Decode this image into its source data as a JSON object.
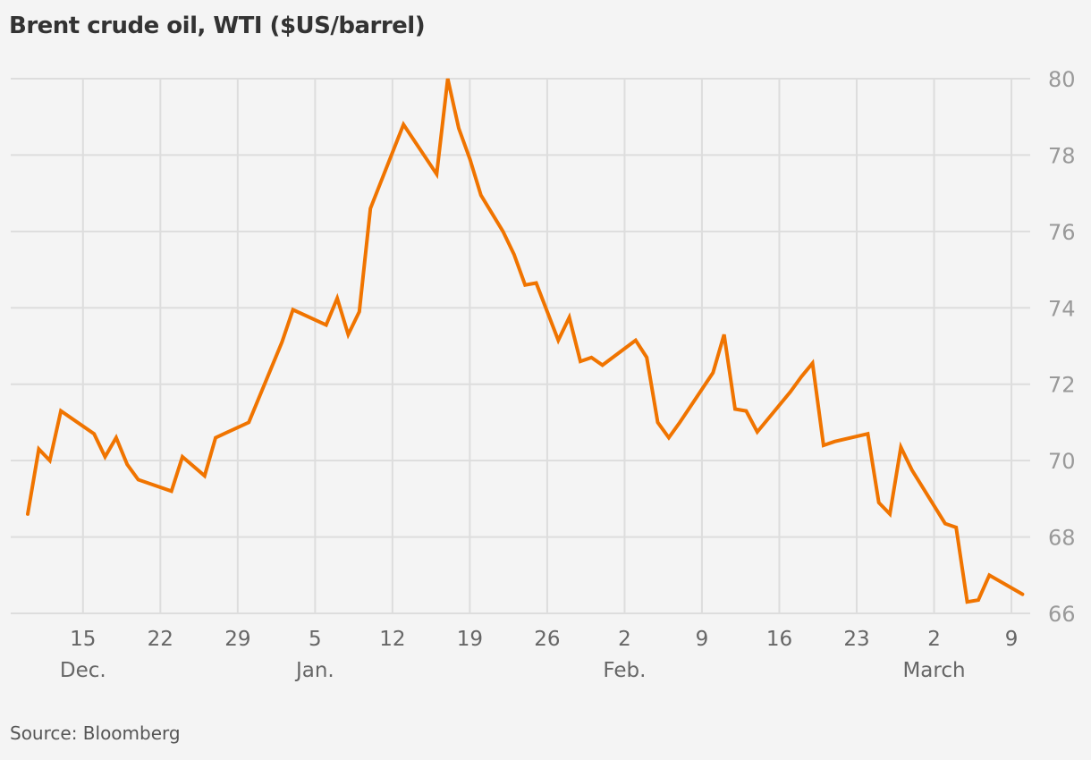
{
  "chart_data": {
    "type": "line",
    "title": "Brent crude oil, WTI ($US/barrel)",
    "source": "Source: Bloomberg",
    "xlabel": "",
    "ylabel": "",
    "ylim": [
      66,
      80
    ],
    "y_ticks": [
      66,
      68,
      70,
      72,
      74,
      76,
      78,
      80
    ],
    "grid": true,
    "x_ticks": [
      {
        "day": 5,
        "label": "15",
        "month": "Dec."
      },
      {
        "day": 12,
        "label": "22",
        "month": ""
      },
      {
        "day": 19,
        "label": "29",
        "month": ""
      },
      {
        "day": 26,
        "label": "5",
        "month": "Jan."
      },
      {
        "day": 33,
        "label": "12",
        "month": ""
      },
      {
        "day": 40,
        "label": "19",
        "month": ""
      },
      {
        "day": 47,
        "label": "26",
        "month": ""
      },
      {
        "day": 54,
        "label": "2",
        "month": "Feb."
      },
      {
        "day": 61,
        "label": "9",
        "month": ""
      },
      {
        "day": 68,
        "label": "16",
        "month": ""
      },
      {
        "day": 75,
        "label": "23",
        "month": ""
      },
      {
        "day": 82,
        "label": "2",
        "month": "March"
      },
      {
        "day": 89,
        "label": "9",
        "month": ""
      }
    ],
    "series": [
      {
        "name": "WTI",
        "color": "#f07400",
        "x": [
          0,
          1,
          2,
          3,
          6,
          7,
          8,
          9,
          10,
          13,
          14,
          16,
          17,
          20,
          23,
          24,
          27,
          28,
          29,
          30,
          31,
          34,
          37,
          38,
          39,
          40,
          41,
          43,
          44,
          45,
          46,
          48,
          49,
          50,
          51,
          52,
          55,
          56,
          57,
          58,
          59,
          62,
          63,
          64,
          65,
          66,
          69,
          70,
          71,
          72,
          73,
          76,
          77,
          78,
          79,
          80,
          83,
          84,
          85,
          86,
          87,
          90
        ],
        "values": [
          68.6,
          70.3,
          70.0,
          71.3,
          70.7,
          70.1,
          70.6,
          69.9,
          69.5,
          69.2,
          70.1,
          69.6,
          70.6,
          71.0,
          73.1,
          73.95,
          73.55,
          74.25,
          73.3,
          73.9,
          76.6,
          78.8,
          77.5,
          80.0,
          78.7,
          77.9,
          76.95,
          76.0,
          75.4,
          74.6,
          74.65,
          73.15,
          73.75,
          72.6,
          72.7,
          72.5,
          73.15,
          72.7,
          71.0,
          70.6,
          71.0,
          72.3,
          73.3,
          71.35,
          71.3,
          70.75,
          71.8,
          72.2,
          72.55,
          70.4,
          70.5,
          70.7,
          68.9,
          68.6,
          70.35,
          69.75,
          68.35,
          68.25,
          66.3,
          66.35,
          67.0,
          66.5
        ]
      }
    ]
  }
}
